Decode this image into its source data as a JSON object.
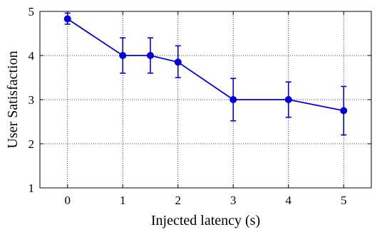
{
  "chart_data": {
    "type": "line",
    "xlabel": "Injected latency (s)",
    "ylabel": "User Satisfaction",
    "xlim": [
      -0.5,
      5.5
    ],
    "ylim": [
      1,
      5
    ],
    "xticks": [
      0,
      1,
      2,
      3,
      4,
      5
    ],
    "yticks": [
      1,
      2,
      3,
      4,
      5
    ],
    "xtick_labels": [
      "0",
      "1",
      "2",
      "3",
      "4",
      "5"
    ],
    "ytick_labels": [
      "1",
      "2",
      "3",
      "4",
      "5"
    ],
    "grid": true,
    "color": "#0000d8",
    "series": [
      {
        "x": [
          0,
          1,
          1.5,
          2,
          3,
          4,
          5
        ],
        "y": [
          4.83,
          4.0,
          4.0,
          3.85,
          3.0,
          3.0,
          2.75
        ],
        "err_low": [
          4.71,
          3.6,
          3.6,
          3.5,
          2.52,
          2.6,
          2.2
        ],
        "err_high": [
          4.96,
          4.4,
          4.4,
          4.22,
          3.48,
          3.4,
          3.3
        ]
      }
    ]
  }
}
